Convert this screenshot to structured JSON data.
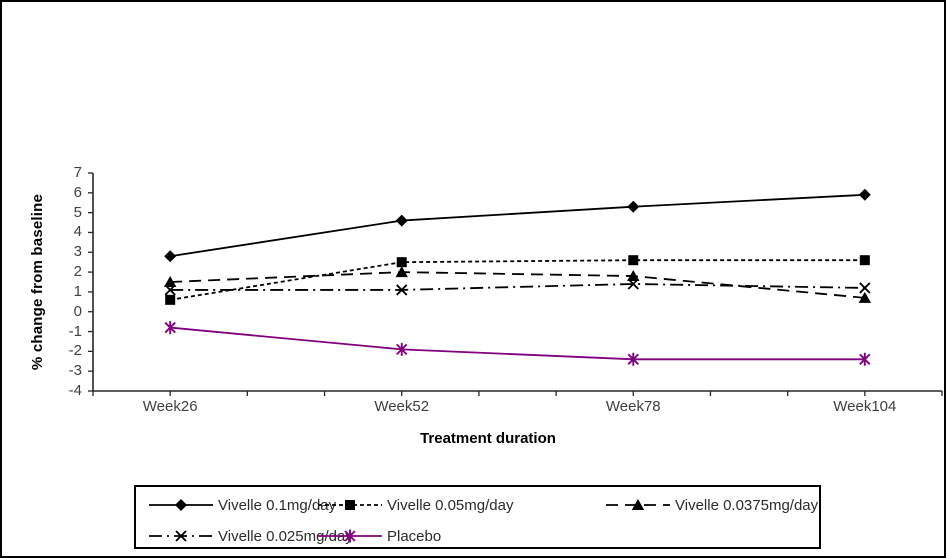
{
  "chart_data": {
    "type": "line",
    "xlabel": "Treatment duration",
    "ylabel": "% change from baseline",
    "categories": [
      "Week26",
      "Week52",
      "Week78",
      "Week104"
    ],
    "yticks": [
      7,
      6,
      5,
      4,
      3,
      2,
      1,
      0,
      -1,
      -2,
      -3,
      -4
    ],
    "ylim": [
      -4,
      7
    ],
    "grid": false,
    "legend_position": "bottom",
    "axis_color": "#262626",
    "tick_label_color": "#3f3f3f",
    "series": [
      {
        "name": "Vivelle 0.1mg/day",
        "values": [
          2.8,
          4.6,
          5.3,
          5.9
        ],
        "color": "#000000",
        "line_style": "solid",
        "marker": "diamond"
      },
      {
        "name": "Vivelle 0.05mg/day",
        "values": [
          0.6,
          2.5,
          2.6,
          2.6
        ],
        "color": "#000000",
        "line_style": "dashed",
        "marker": "square"
      },
      {
        "name": "Vivelle 0.0375mg/day",
        "values": [
          1.5,
          2.0,
          1.8,
          0.7
        ],
        "color": "#000000",
        "line_style": "long-dash",
        "marker": "triangle"
      },
      {
        "name": "Vivelle 0.025mg/day",
        "values": [
          1.1,
          1.1,
          1.4,
          1.2
        ],
        "color": "#000000",
        "line_style": "dash-dot",
        "marker": "x"
      },
      {
        "name": "Placebo",
        "values": [
          -0.8,
          -1.9,
          -2.4,
          -2.4
        ],
        "color": "#800080",
        "line_style": "solid",
        "marker": "asterisk"
      }
    ]
  }
}
